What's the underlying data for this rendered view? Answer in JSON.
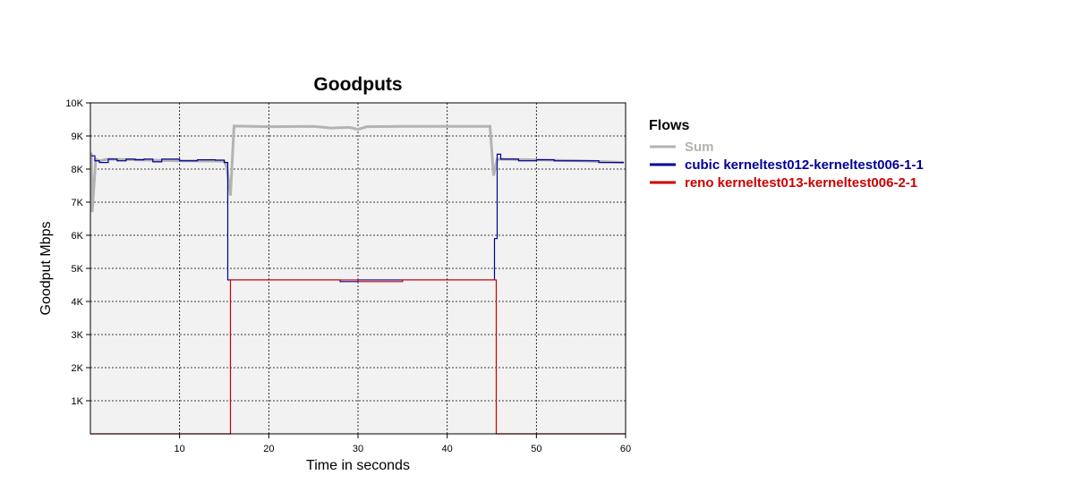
{
  "chart_data": {
    "type": "line",
    "title": "Goodputs",
    "xlabel": "Time in seconds",
    "ylabel": "Goodput Mbps",
    "xlim": [
      0,
      60
    ],
    "ylim": [
      0,
      10000
    ],
    "xticks": [
      10,
      20,
      30,
      40,
      50,
      60
    ],
    "xtick_labels": [
      "10",
      "20",
      "30",
      "40",
      "50",
      "60"
    ],
    "yticks": [
      1000,
      2000,
      3000,
      4000,
      5000,
      6000,
      7000,
      8000,
      9000,
      10000
    ],
    "ytick_labels": [
      "1K",
      "2K",
      "3K",
      "4K",
      "5K",
      "6K",
      "7K",
      "8K",
      "9K",
      "10K"
    ],
    "grid": true,
    "legend": {
      "title": "Flows",
      "placement": "right"
    },
    "series": [
      {
        "name": "Sum",
        "color": "#b3b3b3",
        "step": false,
        "points": [
          [
            0.1,
            8500
          ],
          [
            0.2,
            6700
          ],
          [
            0.6,
            8300
          ],
          [
            1,
            8250
          ],
          [
            2,
            8300
          ],
          [
            5,
            8280
          ],
          [
            10,
            8250
          ],
          [
            15,
            8240
          ],
          [
            15.3,
            8050
          ],
          [
            15.7,
            7200
          ],
          [
            16.1,
            9300
          ],
          [
            20,
            9280
          ],
          [
            25,
            9290
          ],
          [
            27,
            9240
          ],
          [
            29,
            9260
          ],
          [
            30,
            9200
          ],
          [
            31,
            9280
          ],
          [
            35,
            9290
          ],
          [
            40,
            9290
          ],
          [
            44.8,
            9290
          ],
          [
            45.2,
            7800
          ],
          [
            45.6,
            8300
          ],
          [
            50,
            8280
          ],
          [
            55,
            8250
          ],
          [
            59.8,
            8200
          ]
        ]
      },
      {
        "name": "cubic kerneltest012-kerneltest006-1-1",
        "color": "#000099",
        "step": true,
        "points": [
          [
            0.1,
            8400
          ],
          [
            0.5,
            8250
          ],
          [
            1,
            8200
          ],
          [
            2,
            8300
          ],
          [
            3,
            8250
          ],
          [
            4,
            8300
          ],
          [
            5,
            8280
          ],
          [
            6,
            8300
          ],
          [
            7,
            8220
          ],
          [
            8,
            8300
          ],
          [
            10,
            8250
          ],
          [
            12,
            8280
          ],
          [
            14,
            8270
          ],
          [
            15,
            8200
          ],
          [
            15.4,
            4650
          ],
          [
            16,
            4650
          ],
          [
            20,
            4650
          ],
          [
            25,
            4650
          ],
          [
            28,
            4600
          ],
          [
            30,
            4650
          ],
          [
            35,
            4650
          ],
          [
            40,
            4650
          ],
          [
            45.3,
            4650
          ],
          [
            45.3,
            5900
          ],
          [
            45.6,
            8450
          ],
          [
            46,
            8300
          ],
          [
            48,
            8250
          ],
          [
            50,
            8280
          ],
          [
            52,
            8250
          ],
          [
            55,
            8250
          ],
          [
            57,
            8200
          ],
          [
            59.8,
            8200
          ]
        ]
      },
      {
        "name": "reno kerneltest013-kerneltest006-2-1",
        "color": "#cc0000",
        "step": true,
        "points": [
          [
            0,
            0
          ],
          [
            15.7,
            0
          ],
          [
            15.7,
            4650
          ],
          [
            20,
            4650
          ],
          [
            25,
            4650
          ],
          [
            30,
            4600
          ],
          [
            35,
            4650
          ],
          [
            40,
            4650
          ],
          [
            45.5,
            4650
          ],
          [
            45.5,
            0
          ],
          [
            60,
            0
          ]
        ]
      }
    ]
  }
}
